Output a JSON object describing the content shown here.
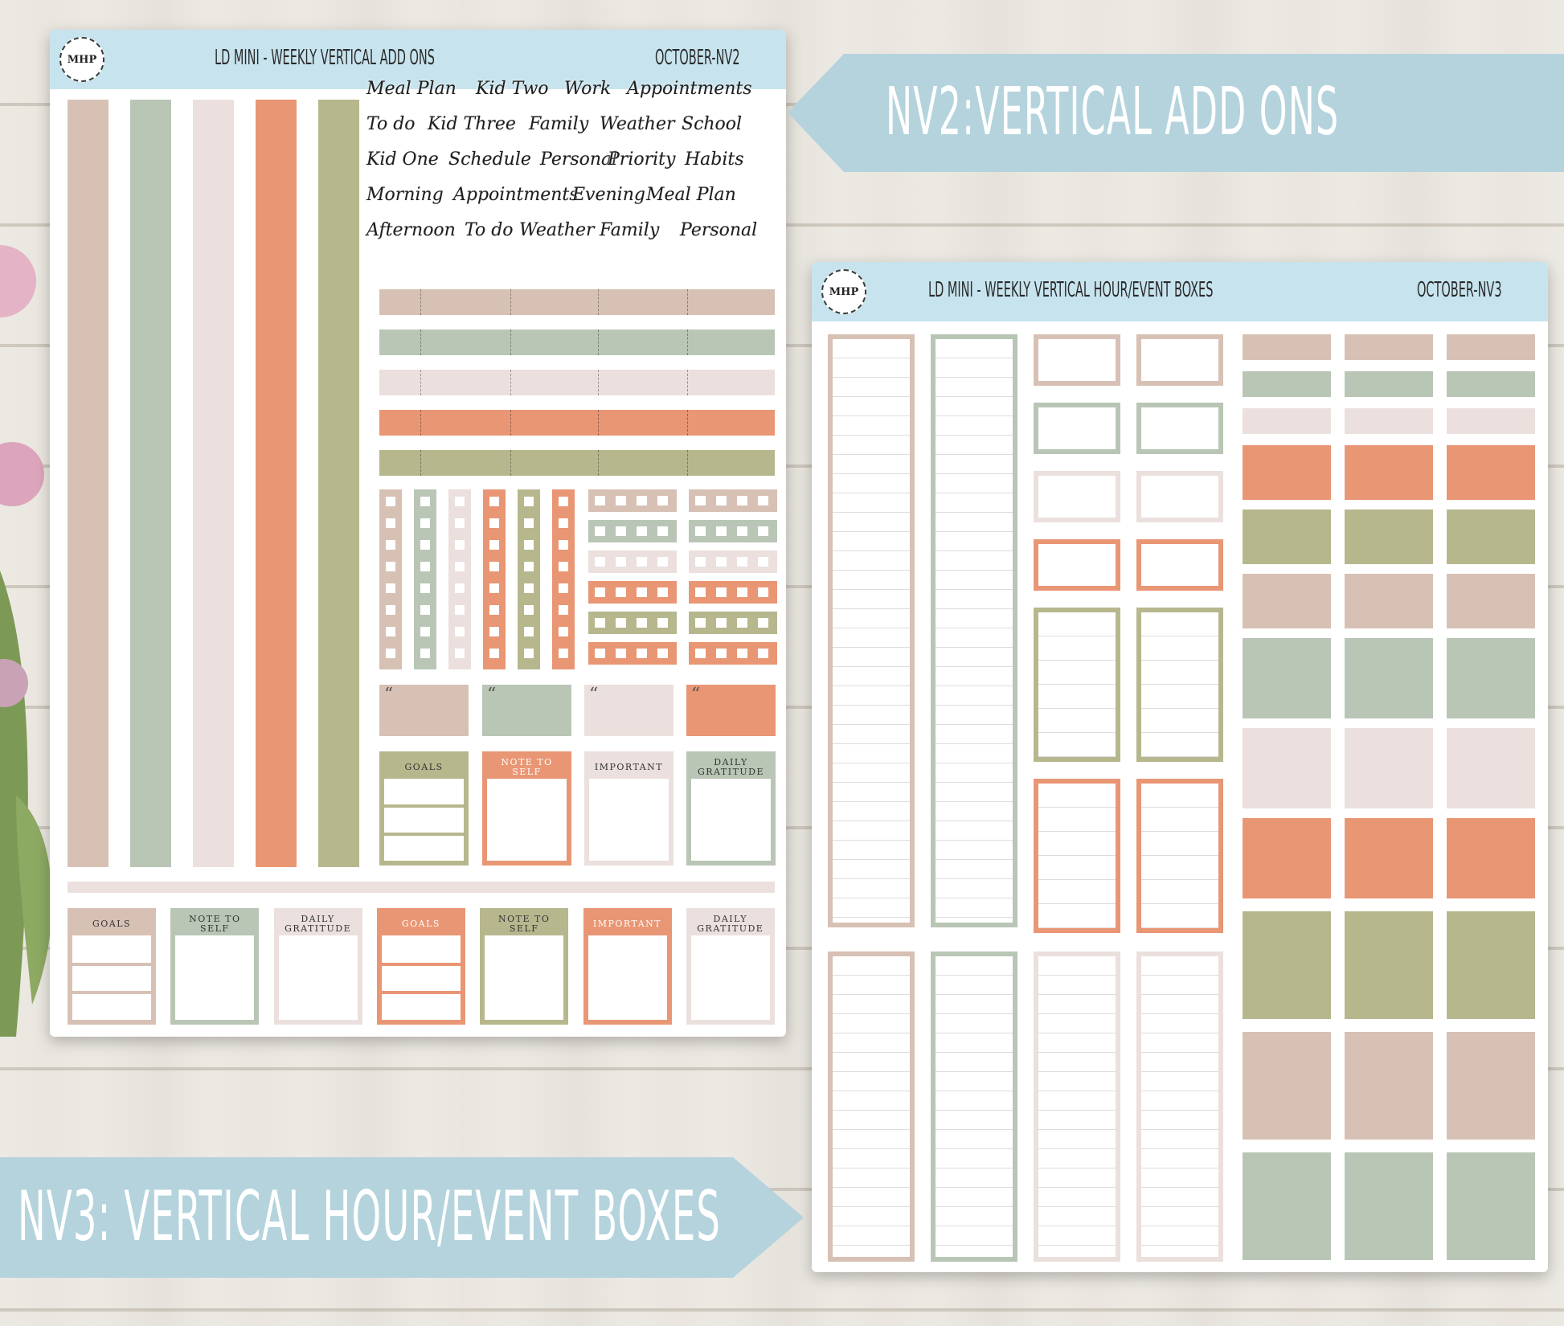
{
  "colors": {
    "tan": "#d7c1b4",
    "sage": "#b9c6b6",
    "blush": "#ebe0dd",
    "coral": "#e99674",
    "olive": "#b7b78e",
    "header_blue": "#c7e4ee",
    "banner_blue": "#b4d3dd"
  },
  "sheet_nv2": {
    "logo": "MHP",
    "title": "LD MINI - WEEKLY VERTICAL ADD ONS",
    "code": "OCTOBER-NV2",
    "words": [
      [
        "Meal Plan",
        "Kid Two",
        "Work",
        "Appointments"
      ],
      [
        "To do",
        "Kid Three",
        "Family",
        "Weather",
        "School"
      ],
      [
        "Kid One",
        "Schedule",
        "Personal",
        "Priority",
        "Habits"
      ],
      [
        "Morning",
        "Appointments",
        "Evening",
        "Meal Plan"
      ],
      [
        "Afternoon",
        "To do",
        "Weather",
        "Family",
        "Personal"
      ]
    ],
    "quote_mark": "“",
    "label_row_1": [
      "GOALS",
      "NOTE TO SELF",
      "IMPORTANT",
      "DAILY GRATITUDE"
    ],
    "label_row_2": [
      "GOALS",
      "NOTE TO SELF",
      "DAILY GRATITUDE",
      "GOALS",
      "NOTE TO SELF",
      "IMPORTANT",
      "DAILY GRATITUDE"
    ]
  },
  "sheet_nv3": {
    "logo": "MHP",
    "title": "LD MINI - WEEKLY VERTICAL HOUR/EVENT BOXES",
    "code": "OCTOBER-NV3"
  },
  "banner_nv2": {
    "text": "NV2:VERTICAL ADD ONS"
  },
  "banner_nv3": {
    "text": "NV3: VERTICAL HOUR/EVENT BOXES"
  }
}
